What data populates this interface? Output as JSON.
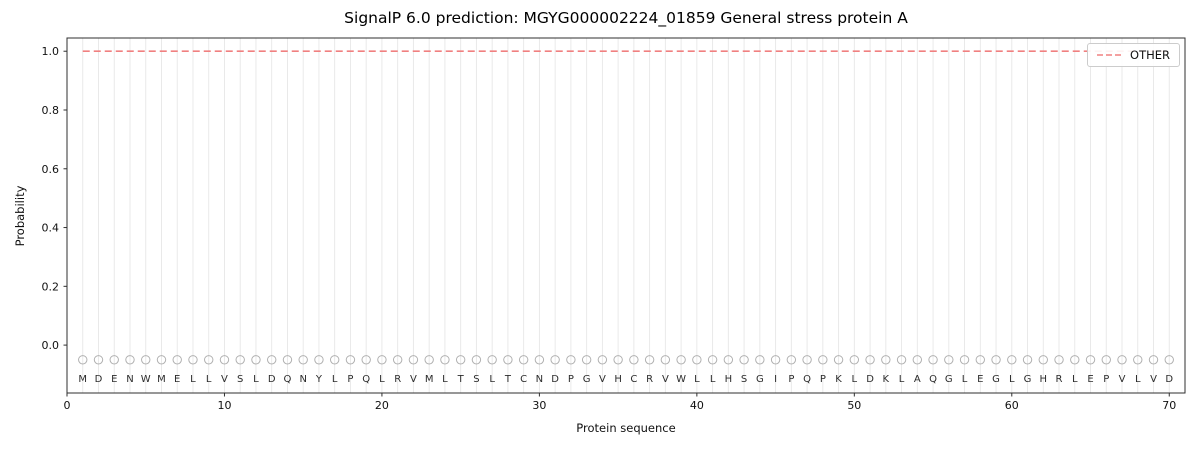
{
  "chart_data": {
    "type": "line",
    "title": "SignalP 6.0 prediction: MGYG000002224_01859 General stress protein A",
    "xlabel": "Protein sequence",
    "ylabel": "Probability",
    "xlim": [
      0,
      71
    ],
    "ylim": [
      -0.163,
      1.045
    ],
    "x_ticks": [
      0,
      10,
      20,
      30,
      40,
      50,
      60,
      70
    ],
    "y_ticks": [
      0.0,
      0.2,
      0.4,
      0.6,
      0.8,
      1.0
    ],
    "grid": "vertical line at every residue position",
    "background": "#ffffff",
    "sequence": "MDENWMELLVSLDQNYLPQLRVMLTSLTCNDPGVHCRVWLLHSGIPQPKLDKLAQGLEGLGHRLEPVLVD",
    "series": [
      {
        "name": "OTHER",
        "color": "#f08080",
        "dash": true,
        "x_start": 1,
        "x_step": 1,
        "values": [
          1,
          1,
          1,
          1,
          1,
          1,
          1,
          1,
          1,
          1,
          1,
          1,
          1,
          1,
          1,
          1,
          1,
          1,
          1,
          1,
          1,
          1,
          1,
          1,
          1,
          1,
          1,
          1,
          1,
          1,
          1,
          1,
          1,
          1,
          1,
          1,
          1,
          1,
          1,
          1,
          1,
          1,
          1,
          1,
          1,
          1,
          1,
          1,
          1,
          1,
          1,
          1,
          1,
          1,
          1,
          1,
          1,
          1,
          1,
          1,
          1,
          1,
          1,
          1,
          1,
          1,
          1,
          1,
          1,
          1
        ]
      }
    ],
    "marker_row": {
      "y": -0.05,
      "marker": "o",
      "color": "#b0b0b0"
    },
    "letter_row": {
      "y": -0.112,
      "color": "#2b2b2b"
    },
    "legend": {
      "position": "upper-right",
      "entries": [
        {
          "label": "OTHER",
          "style": "dashed",
          "color": "#f08080"
        }
      ]
    }
  }
}
